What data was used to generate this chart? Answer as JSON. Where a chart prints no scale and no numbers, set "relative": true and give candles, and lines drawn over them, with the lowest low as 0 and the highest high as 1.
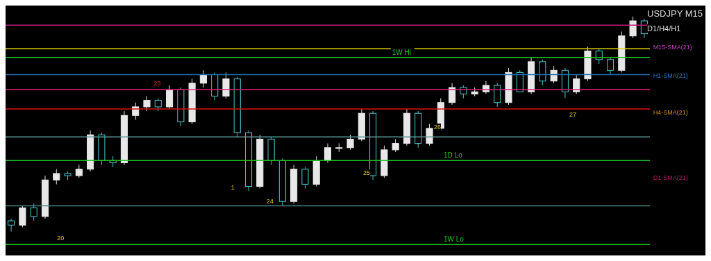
{
  "chart_data": {
    "type": "candlestick",
    "title": "USDJPY M15",
    "subtitle": "D1/H4/H1",
    "relative": true,
    "categories": [
      null,
      null,
      null,
      null,
      null,
      null,
      null,
      null,
      null,
      null,
      null,
      null,
      null,
      null,
      null,
      null,
      null,
      null,
      null,
      null,
      null,
      null,
      null,
      null,
      null,
      null,
      null,
      null,
      null,
      null,
      null,
      null,
      null,
      null,
      null,
      null,
      null,
      null,
      null,
      null,
      null,
      null,
      null,
      null,
      null,
      null,
      null,
      null,
      null,
      null,
      null,
      null,
      null,
      null,
      null,
      null,
      null
    ],
    "ohlc": [
      [
        0.05,
        0.06,
        0.0,
        0.03
      ],
      [
        0.03,
        0.12,
        0.02,
        0.11
      ],
      [
        0.11,
        0.13,
        0.05,
        0.07
      ],
      [
        0.07,
        0.26,
        0.06,
        0.24
      ],
      [
        0.24,
        0.29,
        0.22,
        0.27
      ],
      [
        0.27,
        0.28,
        0.24,
        0.26
      ],
      [
        0.26,
        0.31,
        0.25,
        0.29
      ],
      [
        0.29,
        0.47,
        0.28,
        0.45
      ],
      [
        0.45,
        0.46,
        0.31,
        0.33
      ],
      [
        0.33,
        0.35,
        0.3,
        0.32
      ],
      [
        0.32,
        0.56,
        0.31,
        0.54
      ],
      [
        0.54,
        0.6,
        0.52,
        0.58
      ],
      [
        0.58,
        0.63,
        0.56,
        0.61
      ],
      [
        0.61,
        0.62,
        0.56,
        0.58
      ],
      [
        0.58,
        0.68,
        0.57,
        0.66
      ],
      [
        0.66,
        0.67,
        0.49,
        0.51
      ],
      [
        0.51,
        0.71,
        0.5,
        0.69
      ],
      [
        0.69,
        0.75,
        0.67,
        0.73
      ],
      [
        0.73,
        0.74,
        0.61,
        0.63
      ],
      [
        0.63,
        0.74,
        0.62,
        0.71
      ],
      [
        0.71,
        0.72,
        0.44,
        0.46
      ],
      [
        0.46,
        0.47,
        0.19,
        0.21
      ],
      [
        0.21,
        0.45,
        0.2,
        0.43
      ],
      [
        0.43,
        0.44,
        0.31,
        0.33
      ],
      [
        0.33,
        0.34,
        0.12,
        0.14
      ],
      [
        0.14,
        0.31,
        0.13,
        0.29
      ],
      [
        0.29,
        0.3,
        0.2,
        0.22
      ],
      [
        0.22,
        0.35,
        0.21,
        0.33
      ],
      [
        0.33,
        0.41,
        0.32,
        0.39
      ],
      [
        0.39,
        0.41,
        0.37,
        0.39
      ],
      [
        0.39,
        0.45,
        0.38,
        0.43
      ],
      [
        0.43,
        0.57,
        0.42,
        0.55
      ],
      [
        0.55,
        0.56,
        0.24,
        0.26
      ],
      [
        0.26,
        0.4,
        0.25,
        0.38
      ],
      [
        0.38,
        0.43,
        0.37,
        0.41
      ],
      [
        0.41,
        0.57,
        0.4,
        0.55
      ],
      [
        0.55,
        0.56,
        0.39,
        0.41
      ],
      [
        0.41,
        0.5,
        0.4,
        0.48
      ],
      [
        0.48,
        0.62,
        0.47,
        0.6
      ],
      [
        0.6,
        0.69,
        0.59,
        0.67
      ],
      [
        0.67,
        0.68,
        0.62,
        0.64
      ],
      [
        0.64,
        0.67,
        0.63,
        0.65
      ],
      [
        0.65,
        0.7,
        0.64,
        0.68
      ],
      [
        0.68,
        0.69,
        0.58,
        0.6
      ],
      [
        0.6,
        0.76,
        0.59,
        0.74
      ],
      [
        0.74,
        0.75,
        0.65,
        0.65
      ],
      [
        0.65,
        0.81,
        0.64,
        0.79
      ],
      [
        0.79,
        0.8,
        0.68,
        0.7
      ],
      [
        0.7,
        0.77,
        0.69,
        0.75
      ],
      [
        0.75,
        0.76,
        0.62,
        0.65
      ],
      [
        0.65,
        0.73,
        0.64,
        0.71
      ],
      [
        0.71,
        0.86,
        0.7,
        0.84
      ],
      [
        0.84,
        0.85,
        0.78,
        0.8
      ],
      [
        0.8,
        0.81,
        0.73,
        0.75
      ],
      [
        0.75,
        0.93,
        0.74,
        0.91
      ],
      [
        0.91,
        1.0,
        0.9,
        0.98
      ],
      [
        0.98,
        0.99,
        0.9,
        0.92
      ]
    ],
    "ref_lines": [
      {
        "axis": "y",
        "value": 0.96,
        "color": "#c0187a"
      },
      {
        "axis": "y",
        "value": 0.85,
        "color": "#e6d200"
      },
      {
        "axis": "y",
        "value": 0.81,
        "label": "1W Hi",
        "color": "#1fc21f"
      },
      {
        "axis": "y",
        "value": 0.73,
        "color": "#1e6fb8"
      },
      {
        "axis": "y",
        "value": 0.66,
        "color": "#e0207f"
      },
      {
        "axis": "y",
        "value": 0.57,
        "color": "#e01010"
      },
      {
        "axis": "y",
        "value": 0.44,
        "color": "#5a9a9a"
      },
      {
        "axis": "y",
        "value": 0.33,
        "label": "1D Lo",
        "color": "#1fc21f"
      },
      {
        "axis": "y",
        "value": 0.12,
        "color": "#4a8080"
      },
      {
        "axis": "y",
        "value": -0.06,
        "label": "1W Lo",
        "color": "#1fc21f"
      }
    ],
    "annotations": [
      "M15-SMA(21)",
      "H1-SMA(21)",
      "H4-SMA(21)",
      "D1-SMA(21)",
      "20",
      "23",
      "1",
      "24",
      "25",
      "26",
      "27"
    ]
  }
}
